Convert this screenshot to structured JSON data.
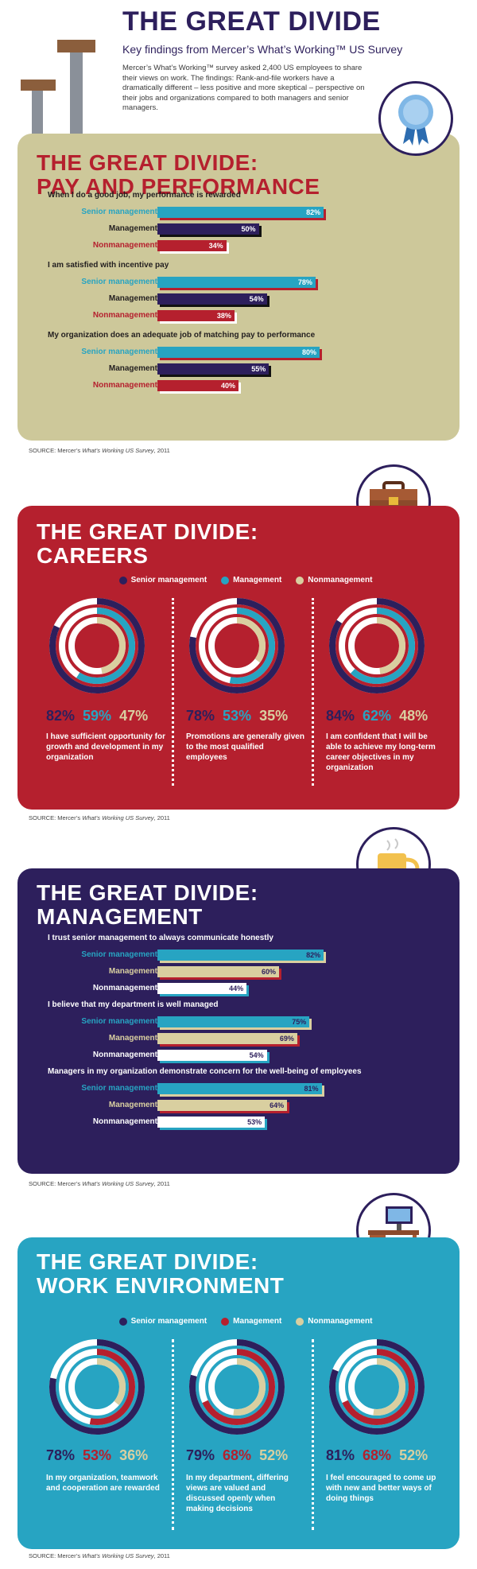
{
  "header": {
    "title": "THE GREAT DIVIDE",
    "subtitle": "Key findings from Mercer’s What’s Working™ US Survey",
    "intro": "Mercer’s What’s Working™ survey asked 2,400 US employees to share their views on work. The findings: Rank-and-file workers have a dramatically different – less positive and more skeptical – perspective on their jobs and organizations compared to both managers and senior managers."
  },
  "colors": {
    "navy": "#2d1f5c",
    "teal": "#27a4c2",
    "red": "#b5202e",
    "khaki": "#cdc89a",
    "tan": "#d9cfa0",
    "white": "#ffffff"
  },
  "source": {
    "prefix": "SOURCE: Mercer’s ",
    "survey": "What’s Working US Survey",
    "suffix": ", 2011"
  },
  "legend_labels": {
    "senior": "Senior management",
    "management": "Management",
    "nonmanagement": "Nonmanagement"
  },
  "pay": {
    "title_line1": "THE GREAT DIVIDE:",
    "title_line2": "PAY AND PERFORMANCE",
    "icon": "award-ribbon-icon"
  },
  "careers": {
    "title_line1": "THE GREAT DIVIDE:",
    "title_line2": "CAREERS",
    "icon": "briefcase-icon"
  },
  "management_section": {
    "title_line1": "THE GREAT DIVIDE:",
    "title_line2": "MANAGEMENT",
    "icon": "coffee-mug-icon"
  },
  "work": {
    "title_line1": "THE GREAT DIVIDE:",
    "title_line2": "WORK ENVIRONMENT",
    "icon": "computer-desk-icon"
  },
  "chart_data": [
    {
      "type": "bar",
      "title": "THE GREAT DIVIDE: PAY AND PERFORMANCE",
      "categories": [
        "Senior management",
        "Management",
        "Nonmanagement"
      ],
      "questions": [
        {
          "text": "When I do a good job, my performance is rewarded",
          "values": [
            82,
            50,
            34
          ],
          "labels": [
            "82%",
            "50%",
            "34%"
          ]
        },
        {
          "text": "I am satisfied with incentive pay",
          "values": [
            78,
            54,
            38
          ],
          "labels": [
            "78%",
            "54%",
            "38%"
          ]
        },
        {
          "text": "My organization does an adequate job of matching pay to performance",
          "values": [
            80,
            55,
            40
          ],
          "labels": [
            "80%",
            "55%",
            "40%"
          ]
        }
      ]
    },
    {
      "type": "pie",
      "title": "THE GREAT DIVIDE: CAREERS",
      "series_names": [
        "Senior management",
        "Management",
        "Nonmanagement"
      ],
      "items": [
        {
          "statement": "I have sufficient opportunity for growth and development in my organization",
          "values": [
            82,
            59,
            47
          ],
          "labels": [
            "82%",
            "59%",
            "47%"
          ]
        },
        {
          "statement": "Promotions are generally given to the most qualified employees",
          "values": [
            78,
            53,
            35
          ],
          "labels": [
            "78%",
            "53%",
            "35%"
          ]
        },
        {
          "statement": "I am confident that I will be able to achieve my long-term career objectives in my organization",
          "values": [
            84,
            62,
            48
          ],
          "labels": [
            "84%",
            "62%",
            "48%"
          ]
        }
      ]
    },
    {
      "type": "bar",
      "title": "THE GREAT DIVIDE: MANAGEMENT",
      "categories": [
        "Senior management",
        "Management",
        "Nonmanagement"
      ],
      "questions": [
        {
          "text": "I trust senior management to always communicate honestly",
          "values": [
            82,
            60,
            44
          ],
          "labels": [
            "82%",
            "60%",
            "44%"
          ]
        },
        {
          "text": "I believe that my department is well managed",
          "values": [
            75,
            69,
            54
          ],
          "labels": [
            "75%",
            "69%",
            "54%"
          ]
        },
        {
          "text": "Managers in my organization demonstrate concern for the well-being of employees",
          "values": [
            81,
            64,
            53
          ],
          "labels": [
            "81%",
            "64%",
            "53%"
          ]
        }
      ]
    },
    {
      "type": "pie",
      "title": "THE GREAT DIVIDE: WORK ENVIRONMENT",
      "series_names": [
        "Senior management",
        "Management",
        "Nonmanagement"
      ],
      "items": [
        {
          "statement": "In my organization, teamwork and cooperation are rewarded",
          "values": [
            78,
            53,
            36
          ],
          "labels": [
            "78%",
            "53%",
            "36%"
          ]
        },
        {
          "statement": "In my department, differing views are valued and discussed openly when making decisions",
          "values": [
            79,
            68,
            52
          ],
          "labels": [
            "79%",
            "68%",
            "52%"
          ]
        },
        {
          "statement": "I feel encouraged to come up with new and better ways of doing things",
          "values": [
            81,
            68,
            52
          ],
          "labels": [
            "81%",
            "68%",
            "52%"
          ]
        }
      ]
    }
  ]
}
